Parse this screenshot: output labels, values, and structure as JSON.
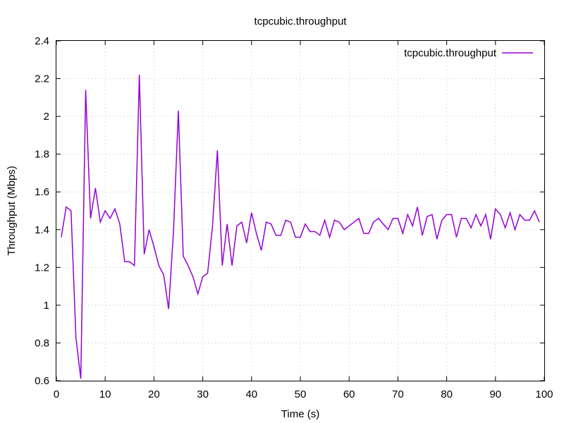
{
  "chart_data": {
    "type": "line",
    "title": "tcpcubic.throughput",
    "xlabel": "Time (s)",
    "ylabel": "Throughput (Mbps)",
    "xlim": [
      0,
      100
    ],
    "ylim": [
      0.6,
      2.4
    ],
    "xticks": [
      "0",
      "10",
      "20",
      "30",
      "40",
      "50",
      "60",
      "70",
      "80",
      "90",
      "100"
    ],
    "yticks": [
      "0.6",
      "0.8",
      "1",
      "1.2",
      "1.4",
      "1.6",
      "1.8",
      "2",
      "2.2",
      "2.4"
    ],
    "grid": true,
    "legend_position": "top-right",
    "series": [
      {
        "name": "tcpcubic.throughput",
        "color": "#9400d3",
        "x": [
          1,
          2,
          3,
          4,
          5,
          6,
          7,
          8,
          9,
          10,
          11,
          12,
          13,
          14,
          15,
          16,
          17,
          18,
          19,
          20,
          21,
          22,
          23,
          24,
          25,
          26,
          27,
          28,
          29,
          30,
          31,
          32,
          33,
          34,
          35,
          36,
          37,
          38,
          39,
          40,
          41,
          42,
          43,
          44,
          45,
          46,
          47,
          48,
          49,
          50,
          51,
          52,
          53,
          54,
          55,
          56,
          57,
          58,
          59,
          60,
          61,
          62,
          63,
          64,
          65,
          66,
          67,
          68,
          69,
          70,
          71,
          72,
          73,
          74,
          75,
          76,
          77,
          78,
          79,
          80,
          81,
          82,
          83,
          84,
          85,
          86,
          87,
          88,
          89,
          90,
          91,
          92,
          93,
          94,
          95,
          96,
          97,
          98,
          99
        ],
        "y": [
          1.36,
          1.52,
          1.5,
          0.83,
          0.61,
          2.14,
          1.46,
          1.62,
          1.44,
          1.5,
          1.46,
          1.51,
          1.43,
          1.23,
          1.23,
          1.21,
          2.22,
          1.27,
          1.4,
          1.31,
          1.21,
          1.16,
          0.98,
          1.39,
          2.03,
          1.26,
          1.21,
          1.15,
          1.06,
          1.15,
          1.17,
          1.42,
          1.82,
          1.21,
          1.43,
          1.21,
          1.42,
          1.44,
          1.33,
          1.49,
          1.38,
          1.29,
          1.44,
          1.43,
          1.37,
          1.37,
          1.45,
          1.44,
          1.36,
          1.36,
          1.43,
          1.39,
          1.39,
          1.37,
          1.45,
          1.36,
          1.45,
          1.44,
          1.4,
          1.42,
          1.44,
          1.46,
          1.38,
          1.38,
          1.44,
          1.46,
          1.43,
          1.4,
          1.46,
          1.46,
          1.38,
          1.48,
          1.42,
          1.52,
          1.37,
          1.47,
          1.48,
          1.35,
          1.45,
          1.48,
          1.48,
          1.36,
          1.46,
          1.46,
          1.41,
          1.48,
          1.42,
          1.48,
          1.35,
          1.51,
          1.48,
          1.41,
          1.49,
          1.4,
          1.48,
          1.45,
          1.45,
          1.5,
          1.44
        ]
      }
    ]
  }
}
